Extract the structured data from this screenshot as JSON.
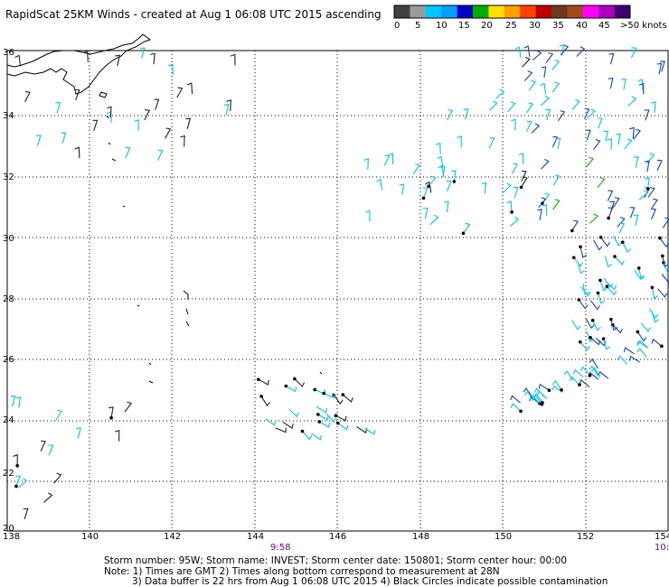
{
  "header": {
    "title": "RapidScat 25KM Winds - created at Aug  1 06:08 UTC 2015 ascending"
  },
  "colorbar": {
    "labels": [
      "0",
      "5",
      "10",
      "15",
      "20",
      "25",
      "30",
      "35",
      "40",
      "45",
      ">50 knots"
    ],
    "colors": [
      "#404040",
      "#9a9a9a",
      "#00c8ff",
      "#00a0ff",
      "#0000cc",
      "#00b000",
      "#ffe000",
      "#ffa000",
      "#ff4000",
      "#c00000",
      "#6b3a1f",
      "#a04a1a",
      "#ff00ff",
      "#b000c0",
      "#400070"
    ]
  },
  "map": {
    "lat_labels": [
      "36",
      "34",
      "32",
      "30",
      "28",
      "26",
      "24",
      "22",
      "20"
    ],
    "lon_labels": [
      "138",
      "140",
      "142",
      "144",
      "146",
      "148",
      "150",
      "152",
      "154"
    ],
    "time_labels": [
      "9:58",
      "10:"
    ],
    "colors": {
      "land": "#000000",
      "grid": "#000000",
      "wind_cyan": "#00c8f0",
      "wind_blue": "#1040c8",
      "wind_dark": "#222222",
      "wind_green": "#10b010",
      "time_label": "#8000a0"
    }
  },
  "footer": {
    "line1": "Storm number: 95W;  Storm name: INVEST;  Storm center date: 150801;  Storm center hour: 00:00",
    "line2": "Note: 1) Times are GMT  2) Times along bottom correspond to measurement at 28N",
    "line3": "3) Data buffer is 22 hrs from Aug  1 06:08 UTC 2015   4) Black Circles indicate possible contamination"
  }
}
